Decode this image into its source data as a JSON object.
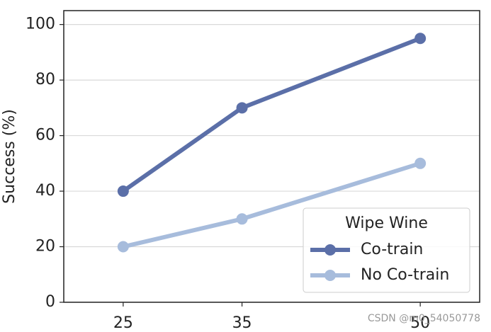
{
  "chart_data": {
    "type": "line",
    "x": [
      25,
      35,
      50
    ],
    "series": [
      {
        "name": "Co-train",
        "color": "#5b6fa8",
        "values": [
          40,
          70,
          95
        ]
      },
      {
        "name": "No Co-train",
        "color": "#a7bcdc",
        "values": [
          20,
          30,
          50
        ]
      }
    ],
    "xlim": [
      20,
      55
    ],
    "xticks": [
      25,
      35,
      50
    ],
    "ylim": [
      0,
      105
    ],
    "yticks": [
      0,
      20,
      40,
      60,
      80,
      100
    ],
    "ylabel": "Success (%)",
    "legend_title": "Wipe Wine",
    "legend": "lower right",
    "grid": true,
    "watermark": "CSDN @m0_54050778"
  }
}
